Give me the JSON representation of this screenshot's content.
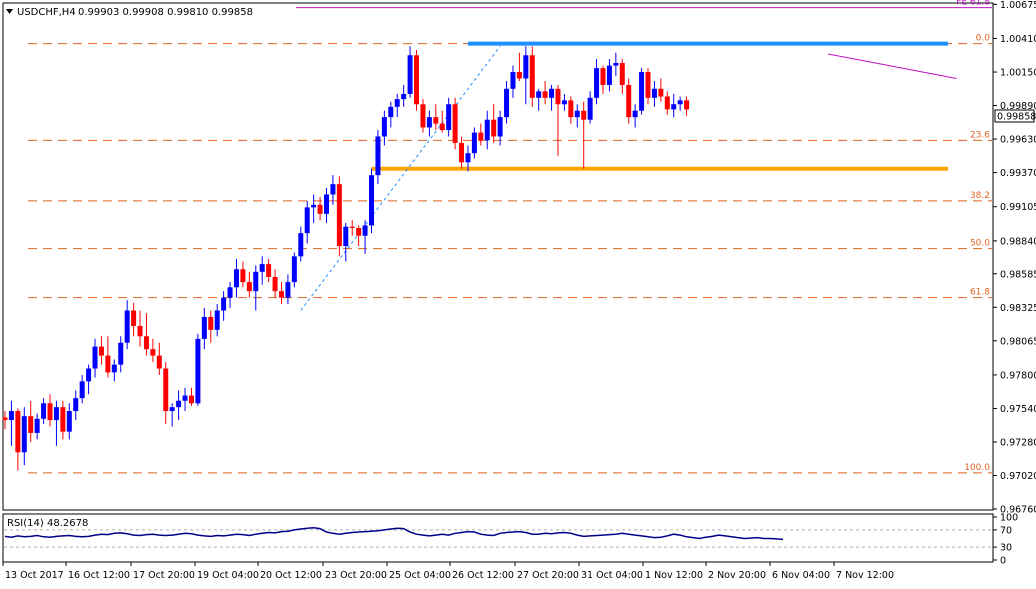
{
  "window": {
    "symbol_title": "USDCHF,H4",
    "ohlc_text": "0.99903 0.99908 0.99810 0.99858",
    "current_price_label": "0.99858"
  },
  "indicator": {
    "title": "RSI(14) 48.2678",
    "levels": [
      "100",
      "70",
      "30",
      "0"
    ],
    "series_values": [
      55,
      53,
      56,
      54,
      55,
      57,
      54,
      53,
      55,
      56,
      57,
      55,
      54,
      55,
      58,
      60,
      59,
      62,
      63,
      61,
      58,
      57,
      59,
      60,
      58,
      57,
      58,
      60,
      62,
      61,
      58,
      56,
      55,
      57,
      56,
      58,
      60,
      59,
      57,
      60,
      62,
      64,
      63,
      66,
      67,
      70,
      72,
      74,
      75,
      73,
      65,
      62,
      60,
      62,
      64,
      65,
      66,
      67,
      68,
      70,
      72,
      74,
      73,
      65,
      60,
      58,
      56,
      58,
      60,
      58,
      62,
      64,
      66,
      65,
      60,
      58,
      57,
      62,
      64,
      65,
      66,
      64,
      60,
      60,
      62,
      61,
      63,
      64,
      62,
      58,
      55,
      56,
      57,
      58,
      59,
      60,
      62,
      60,
      58,
      56,
      54,
      52,
      53,
      56,
      60,
      58,
      54,
      52,
      50,
      53,
      55,
      58,
      56,
      54,
      52,
      50,
      51,
      52,
      50,
      50,
      49,
      48
    ]
  },
  "chart_data": {
    "type": "candlestick",
    "title": "USDCHF,H4",
    "ylim": [
      0.9676,
      1.0067
    ],
    "y_ticks": [
      "1.00675",
      "1.00410",
      "1.00150",
      "0.99890",
      "0.99630",
      "0.99370",
      "0.99105",
      "0.98840",
      "0.98585",
      "0.98325",
      "0.98065",
      "0.97800",
      "0.97540",
      "0.97280",
      "0.97020",
      "0.96760"
    ],
    "x_tick_labels": [
      "13 Oct 2017",
      "16 Oct 12:00",
      "17 Oct 20:00",
      "19 Oct 04:00",
      "20 Oct 12:00",
      "23 Oct 20:00",
      "25 Oct 04:00",
      "26 Oct 12:00",
      "27 Oct 20:00",
      "31 Oct 04:00",
      "1 Nov 12:00",
      "2 Nov 20:00",
      "6 Nov 04:00",
      "7 Nov 12:00"
    ],
    "fibonacci": {
      "levels": [
        {
          "label": "0.0",
          "price": 1.0037
        },
        {
          "label": "23.6",
          "price": 0.9962
        },
        {
          "label": "38.2",
          "price": 0.9915
        },
        {
          "label": "50.0",
          "price": 0.9878
        },
        {
          "label": "61.8",
          "price": 0.984
        },
        {
          "label": "100.0",
          "price": 0.9704
        }
      ],
      "extension": {
        "label": "FE 61.8",
        "price": 1.0065
      }
    },
    "horizontal_lines": [
      {
        "name": "resistance",
        "price": 1.0037,
        "color": "#1e90ff",
        "from_index": 72,
        "to_index": 150
      },
      {
        "name": "support",
        "price": 0.994,
        "color": "#ffa500",
        "from_index": 57,
        "to_index": 150
      }
    ],
    "trendline": {
      "color": "#c010c0",
      "start_index": 128,
      "start_price": 1.0029,
      "end_index": 148,
      "end_price": 1.001
    },
    "colors": {
      "up": "#0000ff",
      "down": "#ff0000",
      "grid_dash": "#e0641e",
      "fe_line": "#c010c0"
    },
    "candles": [
      [
        0.9747,
        0.9752,
        0.9738,
        0.9745
      ],
      [
        0.9745,
        0.976,
        0.9725,
        0.9752
      ],
      [
        0.9752,
        0.9754,
        0.9706,
        0.972
      ],
      [
        0.972,
        0.9755,
        0.971,
        0.9748
      ],
      [
        0.9748,
        0.976,
        0.9728,
        0.9735
      ],
      [
        0.9735,
        0.975,
        0.973,
        0.9746
      ],
      [
        0.9746,
        0.9762,
        0.9742,
        0.9758
      ],
      [
        0.9758,
        0.9765,
        0.974,
        0.9745
      ],
      [
        0.9745,
        0.976,
        0.9725,
        0.9755
      ],
      [
        0.9755,
        0.976,
        0.973,
        0.9736
      ],
      [
        0.9736,
        0.9758,
        0.973,
        0.9752
      ],
      [
        0.9752,
        0.9768,
        0.9745,
        0.9762
      ],
      [
        0.9762,
        0.978,
        0.9758,
        0.9775
      ],
      [
        0.9775,
        0.9788,
        0.9765,
        0.9785
      ],
      [
        0.9785,
        0.9808,
        0.9778,
        0.9802
      ],
      [
        0.9802,
        0.981,
        0.9788,
        0.9795
      ],
      [
        0.9795,
        0.981,
        0.9778,
        0.9782
      ],
      [
        0.9782,
        0.9792,
        0.9775,
        0.9788
      ],
      [
        0.9788,
        0.981,
        0.9782,
        0.9805
      ],
      [
        0.9805,
        0.9838,
        0.98,
        0.983
      ],
      [
        0.983,
        0.9836,
        0.981,
        0.9818
      ],
      [
        0.9818,
        0.983,
        0.9802,
        0.981
      ],
      [
        0.981,
        0.9828,
        0.9795,
        0.98
      ],
      [
        0.98,
        0.9808,
        0.979,
        0.9795
      ],
      [
        0.9795,
        0.9805,
        0.978,
        0.9785
      ],
      [
        0.9785,
        0.979,
        0.9742,
        0.9752
      ],
      [
        0.9752,
        0.9758,
        0.974,
        0.9755
      ],
      [
        0.9755,
        0.9768,
        0.9745,
        0.976
      ],
      [
        0.976,
        0.977,
        0.9752,
        0.9764
      ],
      [
        0.9764,
        0.977,
        0.9756,
        0.9758
      ],
      [
        0.9758,
        0.9812,
        0.9756,
        0.9808
      ],
      [
        0.9808,
        0.9832,
        0.98,
        0.9825
      ],
      [
        0.9825,
        0.983,
        0.9805,
        0.9815
      ],
      [
        0.9815,
        0.9835,
        0.981,
        0.983
      ],
      [
        0.983,
        0.9845,
        0.9822,
        0.984
      ],
      [
        0.984,
        0.9852,
        0.9832,
        0.9848
      ],
      [
        0.9848,
        0.987,
        0.984,
        0.9862
      ],
      [
        0.9862,
        0.9868,
        0.9848,
        0.9852
      ],
      [
        0.9852,
        0.986,
        0.984,
        0.9845
      ],
      [
        0.9845,
        0.9865,
        0.983,
        0.986
      ],
      [
        0.986,
        0.9872,
        0.985,
        0.9866
      ],
      [
        0.9866,
        0.987,
        0.9852,
        0.9856
      ],
      [
        0.9856,
        0.9862,
        0.984,
        0.9845
      ],
      [
        0.9845,
        0.9852,
        0.9835,
        0.984
      ],
      [
        0.984,
        0.9858,
        0.9835,
        0.9852
      ],
      [
        0.9852,
        0.9875,
        0.9848,
        0.9872
      ],
      [
        0.9872,
        0.9895,
        0.9868,
        0.989
      ],
      [
        0.989,
        0.9915,
        0.9882,
        0.991
      ],
      [
        0.991,
        0.992,
        0.9898,
        0.9912
      ],
      [
        0.9912,
        0.9918,
        0.99,
        0.9905
      ],
      [
        0.9905,
        0.9925,
        0.9898,
        0.992
      ],
      [
        0.992,
        0.9935,
        0.9912,
        0.9928
      ],
      [
        0.9928,
        0.9934,
        0.9872,
        0.988
      ],
      [
        0.988,
        0.9898,
        0.9868,
        0.9895
      ],
      [
        0.9895,
        0.99,
        0.9888,
        0.9894
      ],
      [
        0.9894,
        0.9896,
        0.988,
        0.9888
      ],
      [
        0.9888,
        0.99,
        0.9874,
        0.9896
      ],
      [
        0.9896,
        0.994,
        0.989,
        0.9935
      ],
      [
        0.9935,
        0.997,
        0.9928,
        0.9965
      ],
      [
        0.9965,
        0.9985,
        0.9958,
        0.998
      ],
      [
        0.998,
        0.9992,
        0.9972,
        0.9988
      ],
      [
        0.9988,
        0.9998,
        0.998,
        0.9994
      ],
      [
        0.9994,
        1.0005,
        0.9988,
        0.9998
      ],
      [
        0.9998,
        1.0035,
        0.9995,
        1.0028
      ],
      [
        1.0028,
        1.0032,
        0.9985,
        0.999
      ],
      [
        0.999,
        0.9994,
        0.9968,
        0.9972
      ],
      [
        0.9972,
        0.9985,
        0.9965,
        0.998
      ],
      [
        0.998,
        0.999,
        0.997,
        0.9975
      ],
      [
        0.9975,
        0.9985,
        0.9968,
        0.997
      ],
      [
        0.997,
        0.9995,
        0.9965,
        0.999
      ],
      [
        0.999,
        0.9995,
        0.9955,
        0.996
      ],
      [
        0.996,
        0.9965,
        0.994,
        0.9945
      ],
      [
        0.9945,
        0.9958,
        0.9938,
        0.9952
      ],
      [
        0.9952,
        0.9972,
        0.9948,
        0.9968
      ],
      [
        0.9968,
        0.9975,
        0.9958,
        0.9962
      ],
      [
        0.9962,
        0.9985,
        0.9955,
        0.9978
      ],
      [
        0.9978,
        0.999,
        0.996,
        0.9965
      ],
      [
        0.9965,
        0.9985,
        0.9958,
        0.998
      ],
      [
        0.998,
        1.0008,
        0.9975,
        1.0002
      ],
      [
        1.0002,
        1.002,
        0.9995,
        1.0015
      ],
      [
        1.0015,
        1.003,
        1.0008,
        1.001
      ],
      [
        1.001,
        1.0035,
        0.999,
        1.0028
      ],
      [
        1.0028,
        1.0035,
        0.9988,
        0.9995
      ],
      [
        0.9995,
        1.0002,
        0.9985,
        1.0
      ],
      [
        1.0,
        1.0008,
        0.999,
        0.9995
      ],
      [
        0.9995,
        1.0005,
        0.9985,
        1.0002
      ],
      [
        1.0002,
        1.0005,
        0.995,
        0.999
      ],
      [
        0.999,
        0.9998,
        0.9985,
        0.9993
      ],
      [
        0.9993,
        0.9996,
        0.9975,
        0.998
      ],
      [
        0.998,
        0.999,
        0.9972,
        0.9985
      ],
      [
        0.9985,
        0.9992,
        0.994,
        0.9978
      ],
      [
        0.9978,
        1.0,
        0.9975,
        0.9995
      ],
      [
        0.9995,
        1.0025,
        0.999,
        1.0018
      ],
      [
        1.0018,
        1.002,
        0.9998,
        1.0005
      ],
      [
        1.0005,
        1.0025,
        1.0,
        1.002
      ],
      [
        1.002,
        1.003,
        1.0012,
        1.0022
      ],
      [
        1.0022,
        1.0025,
        0.9998,
        1.0005
      ],
      [
        1.0005,
        1.001,
        0.9975,
        0.998
      ],
      [
        0.998,
        0.999,
        0.9972,
        0.9985
      ],
      [
        0.9985,
        1.0018,
        0.9982,
        1.0015
      ],
      [
        1.0015,
        1.0018,
        0.999,
        0.9995
      ],
      [
        0.9995,
        1.0008,
        0.9988,
        1.0002
      ],
      [
        1.0002,
        1.001,
        0.9992,
        0.9996
      ],
      [
        0.9996,
        1.0,
        0.9982,
        0.9986
      ],
      [
        0.9986,
        0.9998,
        0.998,
        0.999
      ],
      [
        0.999,
        0.9996,
        0.9985,
        0.9993
      ],
      [
        0.9993,
        0.9996,
        0.9981,
        0.9986
      ]
    ]
  }
}
